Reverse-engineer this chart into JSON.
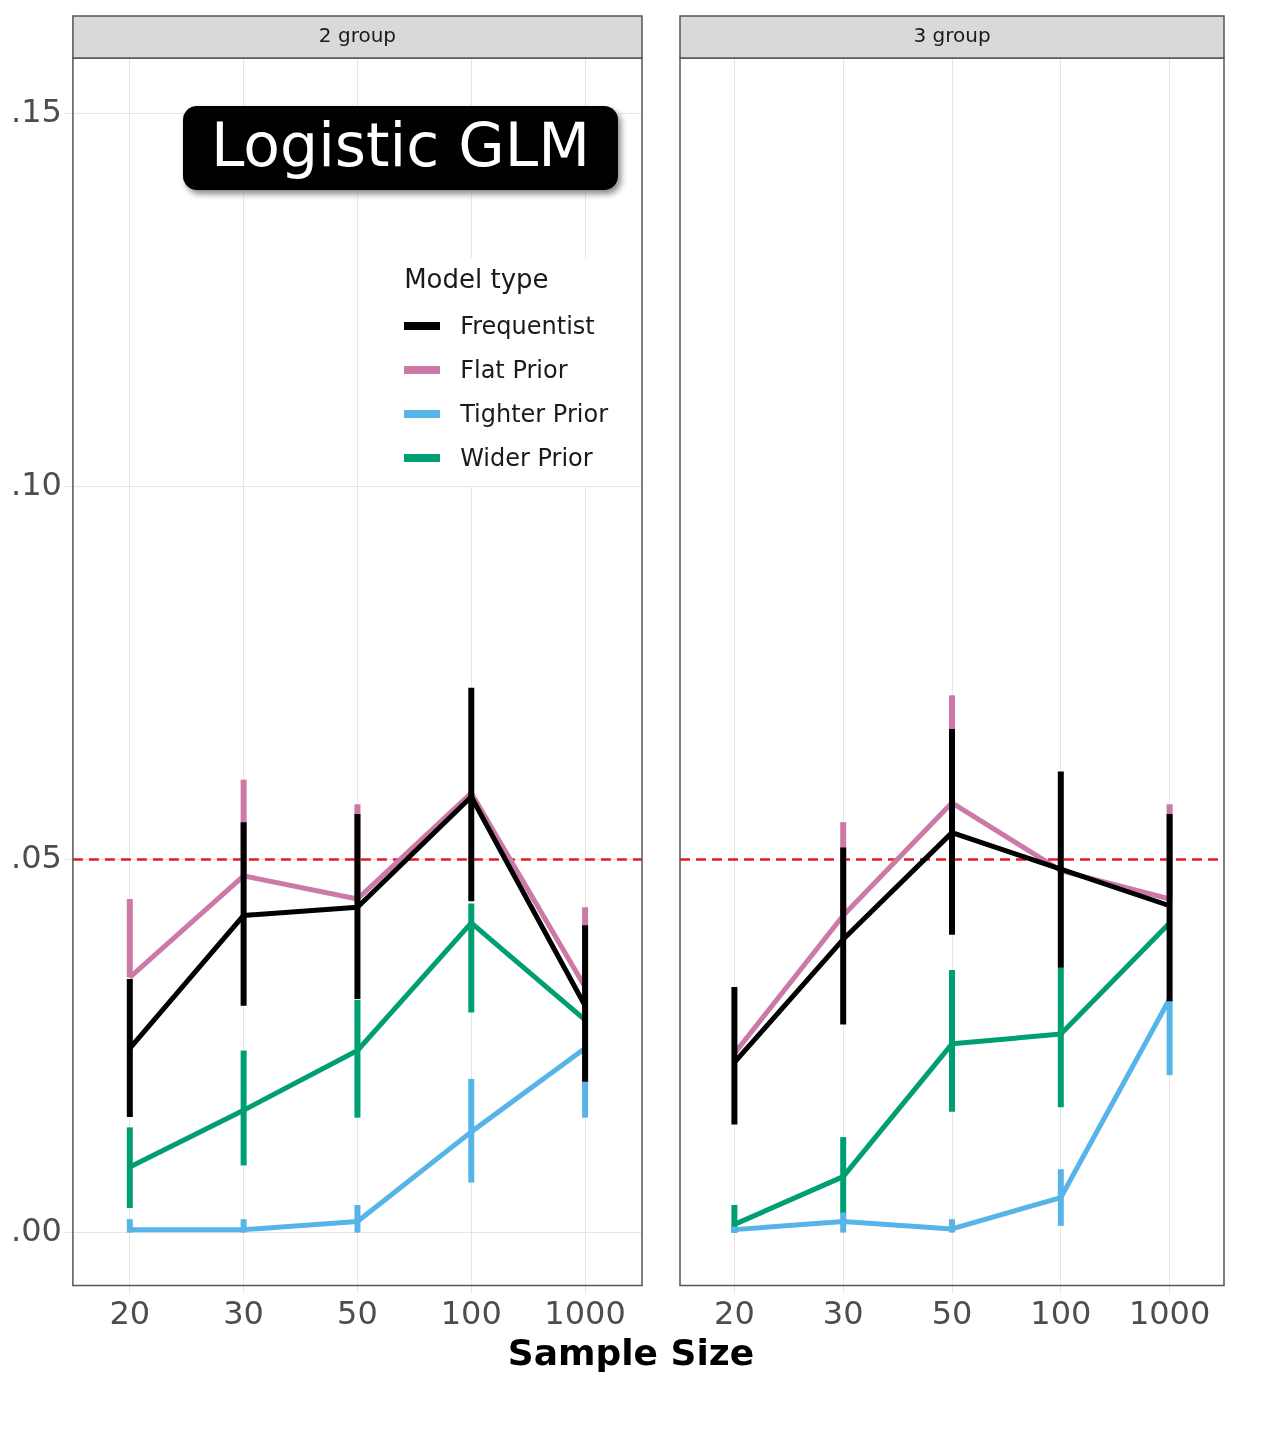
{
  "chart_data": [
    {
      "type": "line",
      "title": "2 group",
      "xlabel": "Sample Size",
      "legend_title": "Model type",
      "legend": "top right",
      "annotations": [
        "Logistic GLM"
      ],
      "categories": [
        "20",
        "30",
        "50",
        "100",
        "1000"
      ],
      "ylim": [
        -0.0071,
        0.1574
      ],
      "yticks": [
        {
          "value": 0,
          "label": ".00"
        },
        {
          "value": 0.05,
          "label": ".05"
        },
        {
          "value": 0.1,
          "label": ".10"
        },
        {
          "value": 0.15,
          "label": ".15"
        }
      ],
      "grid": true,
      "marker": "none",
      "line_style": "solid",
      "ref_lines": [
        {
          "axis": "y",
          "value": 0.05,
          "color": "#e41a1c",
          "line_style": "dashed"
        }
      ],
      "series": [
        {
          "name": "Frequentist",
          "color": "#000000",
          "values": [
            0.0247,
            0.0425,
            0.0436,
            0.0584,
            0.0304
          ],
          "errors": [
            [
              0.0155,
              0.034
            ],
            [
              0.0304,
              0.055
            ],
            [
              0.0313,
              0.0561
            ],
            [
              0.0444,
              0.073
            ],
            [
              0.0202,
              0.0412
            ]
          ]
        },
        {
          "name": "Flat Prior",
          "color": "#cc79a7",
          "values": [
            0.0342,
            0.0478,
            0.0447,
            0.0589,
            0.0329
          ],
          "errors": [
            [
              0.0342,
              0.0447
            ],
            [
              0.0478,
              0.0607
            ],
            [
              0.0447,
              0.0574
            ],
            null,
            [
              0.0329,
              0.0436
            ]
          ]
        },
        {
          "name": "Tighter Prior",
          "color": "#56b4e9",
          "values": [
            0.0004,
            0.0004,
            0.0015,
            0.0135,
            0.0247
          ],
          "errors": [
            [
              0,
              0.0018
            ],
            [
              0,
              0.0018
            ],
            [
              0,
              0.0037
            ],
            [
              0.0067,
              0.0206
            ],
            [
              0.0154,
              0.0247
            ]
          ]
        },
        {
          "name": "Wider Prior",
          "color": "#009e73",
          "values": [
            0.0088,
            0.0164,
            0.0244,
            0.0415,
            0.0285
          ],
          "errors": [
            [
              0.0033,
              0.0141
            ],
            [
              0.009,
              0.0244
            ],
            [
              0.0154,
              0.0312
            ],
            [
              0.0295,
              0.0441
            ],
            null
          ]
        }
      ]
    },
    {
      "type": "line",
      "title": "3 group",
      "categories": [
        "20",
        "30",
        "50",
        "100",
        "1000"
      ],
      "ylim": [
        -0.0071,
        0.1574
      ],
      "tick_labels": "x",
      "grid": true,
      "marker": "none",
      "line_style": "solid",
      "ref_lines": [
        {
          "axis": "y",
          "value": 0.05,
          "color": "#e41a1c",
          "line_style": "dashed"
        }
      ],
      "series": [
        {
          "color": "#000000",
          "values": [
            0.0228,
            0.0393,
            0.0536,
            0.0487,
            0.0438
          ],
          "errors": [
            [
              0.0145,
              0.0329
            ],
            [
              0.0279,
              0.0516
            ],
            [
              0.0399,
              0.0675
            ],
            [
              0.0355,
              0.0618
            ],
            [
              0.031,
              0.0561
            ]
          ]
        },
        {
          "color": "#cc79a7",
          "values": [
            0.024,
            0.0425,
            0.0576,
            0.0485,
            0.0447
          ],
          "errors": [
            null,
            [
              0.0425,
              0.055
            ],
            [
              0.0576,
              0.072
            ],
            null,
            [
              0.0447,
              0.0574
            ]
          ]
        },
        {
          "color": "#56b4e9",
          "values": [
            0.0004,
            0.0015,
            0.0005,
            0.0047,
            0.0313
          ],
          "errors": [
            [
              0,
              0.0008
            ],
            [
              0,
              0.0027
            ],
            [
              0,
              0.0018
            ],
            [
              0.0009,
              0.0085
            ],
            [
              0.0211,
              0.0313
            ]
          ]
        },
        {
          "color": "#009e73",
          "values": [
            0.0011,
            0.0075,
            0.0253,
            0.0266,
            0.0415
          ],
          "errors": [
            [
              0,
              0.0037
            ],
            [
              0.0024,
              0.0128
            ],
            [
              0.0162,
              0.0352
            ],
            [
              0.0168,
              0.0355
            ],
            null
          ]
        }
      ]
    }
  ]
}
